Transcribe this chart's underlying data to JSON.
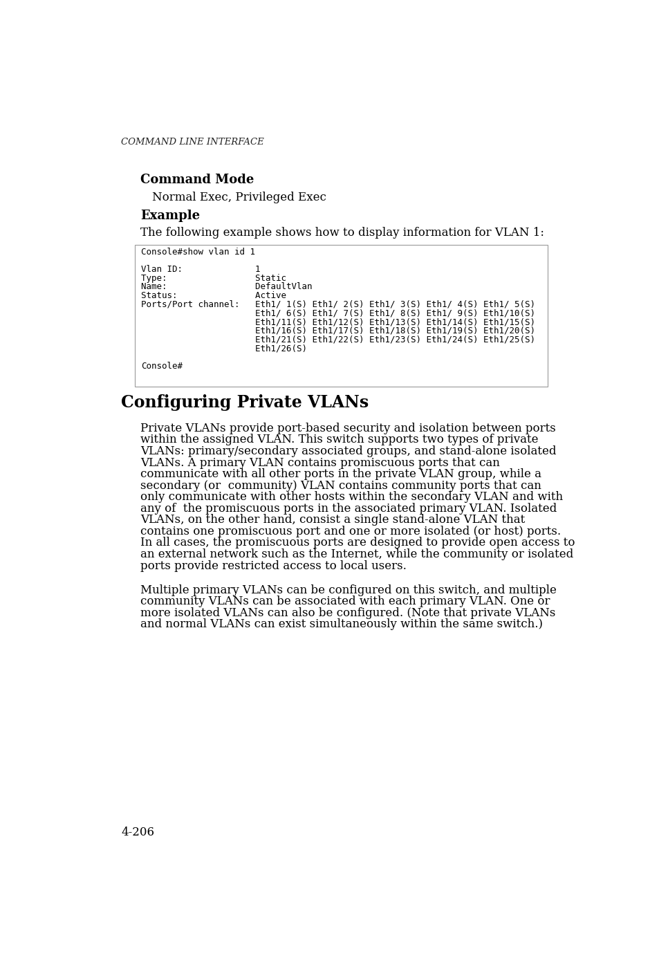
{
  "background_color": "#ffffff",
  "header_label": "Command Line Interface",
  "command_mode_label": "Command Mode",
  "command_mode_value": "Normal Exec, Privileged Exec",
  "example_label": "Example",
  "example_desc": "The following example shows how to display information for VLAN 1:",
  "code_lines": [
    "Console#show vlan id 1",
    "",
    "Vlan ID:              1",
    "Type:                 Static",
    "Name:                 DefaultVlan",
    "Status:               Active",
    "Ports/Port channel:   Eth1/ 1(S) Eth1/ 2(S) Eth1/ 3(S) Eth1/ 4(S) Eth1/ 5(S)",
    "                      Eth1/ 6(S) Eth1/ 7(S) Eth1/ 8(S) Eth1/ 9(S) Eth1/10(S)",
    "                      Eth1/11(S) Eth1/12(S) Eth1/13(S) Eth1/14(S) Eth1/15(S)",
    "                      Eth1/16(S) Eth1/17(S) Eth1/18(S) Eth1/19(S) Eth1/20(S)",
    "                      Eth1/21(S) Eth1/22(S) Eth1/23(S) Eth1/24(S) Eth1/25(S)",
    "                      Eth1/26(S)",
    "",
    "Console#"
  ],
  "section_title": "Configuring Private VLANs",
  "paragraph1_lines": [
    "Private VLANs provide port-based security and isolation between ports",
    "within the assigned VLAN. This switch supports two types of private",
    "VLANs: primary/secondary associated groups, and stand-alone isolated",
    "VLANs. A primary VLAN contains promiscuous ports that can",
    "communicate with all other ports in the private VLAN group, while a",
    "secondary (or  community) VLAN contains community ports that can",
    "only communicate with other hosts within the secondary VLAN and with",
    "any of  the promiscuous ports in the associated primary VLAN. Isolated",
    "VLANs, on the other hand, consist a single stand-alone VLAN that",
    "contains one promiscuous port and one or more isolated (or host) ports.",
    "In all cases, the promiscuous ports are designed to provide open access to",
    "an external network such as the Internet, while the community or isolated",
    "ports provide restricted access to local users."
  ],
  "paragraph2_lines": [
    "Multiple primary VLANs can be configured on this switch, and multiple",
    "community VLANs can be associated with each primary VLAN. One or",
    "more isolated VLANs can also be configured. (Note that private VLANs",
    "and normal VLANs can exist simultaneously within the same switch.)"
  ],
  "footer_text": "4-206",
  "code_border": "#999999"
}
